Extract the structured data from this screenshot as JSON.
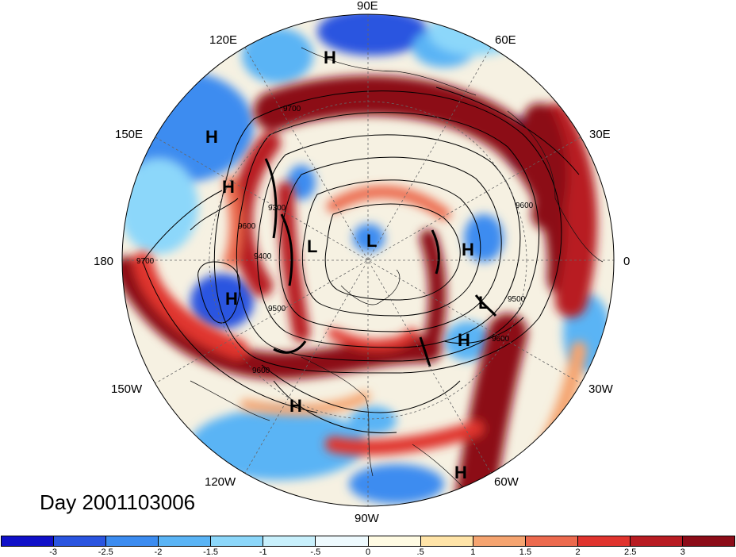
{
  "title": "Day 2001103006",
  "longitude_labels": {
    "e90": "90E",
    "e60": "60E",
    "e30": "30E",
    "zero": "0",
    "w30": "30W",
    "w60": "60W",
    "w90": "90W",
    "w120": "120W",
    "w150": "150W",
    "dateline": "180",
    "e150": "150E",
    "e120": "120E"
  },
  "pressure_centers": [
    {
      "id": "h1",
      "label": "H"
    },
    {
      "id": "h2",
      "label": "H"
    },
    {
      "id": "h3",
      "label": "H"
    },
    {
      "id": "h4",
      "label": "H"
    },
    {
      "id": "h5",
      "label": "H"
    },
    {
      "id": "h6",
      "label": "H"
    },
    {
      "id": "h7",
      "label": "H"
    },
    {
      "id": "h8",
      "label": "H"
    },
    {
      "id": "l1",
      "label": "L"
    },
    {
      "id": "l2",
      "label": "L"
    },
    {
      "id": "l3",
      "label": "L"
    }
  ],
  "contour_labels": [
    "9700",
    "9600",
    "9500",
    "9400",
    "9300",
    "9600",
    "9600",
    "9700",
    "9600",
    "9500"
  ],
  "colorbar": {
    "colors": [
      "#1010c8",
      "#2a55e0",
      "#3c8cf0",
      "#5ab4f5",
      "#8cd7fa",
      "#c8f0fc",
      "#eefafe",
      "#fffbe3",
      "#ffe4a8",
      "#f5a470",
      "#ec6a4e",
      "#e0342e",
      "#b81c22",
      "#8c0c18"
    ],
    "ticks": [
      "-3",
      "-2.5",
      "-2",
      "-1.5",
      "-1",
      "-.5",
      "0",
      ".5",
      "1",
      "1.5",
      "2",
      "2.5",
      "3"
    ]
  }
}
